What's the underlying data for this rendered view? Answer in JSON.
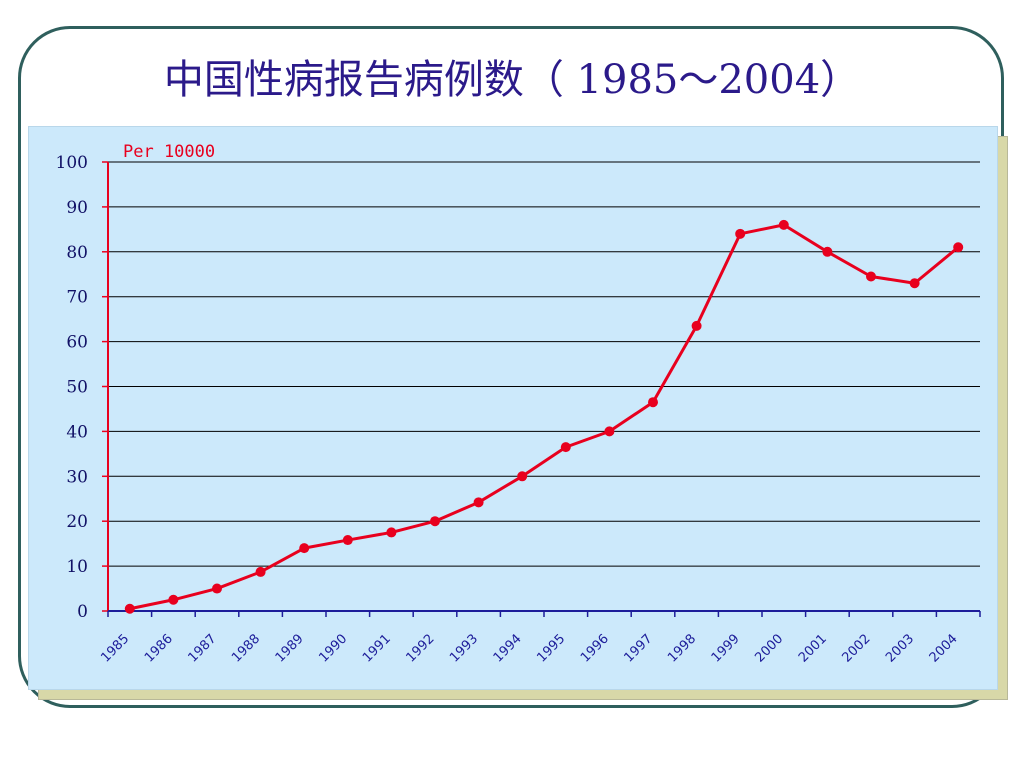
{
  "slide": {
    "title": "中国性病报告病例数（ 1985～2004）"
  },
  "colors": {
    "frame": "#2f5f5d",
    "title": "#2b1a8a",
    "panel": "#cce9fb",
    "shadow": "#d8d8a8",
    "series": "#e8001e",
    "axis": "#e8001e",
    "grid": "#000000",
    "tick_label": "#1d1d9a"
  },
  "chart_data": {
    "type": "line",
    "title": "中国性病报告病例数（ 1985～2004）",
    "unit_label": "Per 10000",
    "x": [
      "1985",
      "1986",
      "1987",
      "1988",
      "1989",
      "1990",
      "1991",
      "1992",
      "1993",
      "1994",
      "1995",
      "1996",
      "1997",
      "1998",
      "1999",
      "2000",
      "2001",
      "2002",
      "2003",
      "2004"
    ],
    "series": [
      {
        "values": [
          0.5,
          2.5,
          5,
          8.7,
          14,
          15.8,
          17.5,
          20,
          24.2,
          30,
          36.5,
          40,
          46.5,
          63.5,
          84,
          86,
          80,
          74.5,
          73,
          81
        ]
      }
    ],
    "yticks": [
      "0",
      "10",
      "20",
      "30",
      "40",
      "50",
      "60",
      "70",
      "80",
      "90",
      "100"
    ],
    "ylim": [
      0,
      100
    ],
    "grid": true,
    "legend": "none",
    "marker": "circle"
  }
}
